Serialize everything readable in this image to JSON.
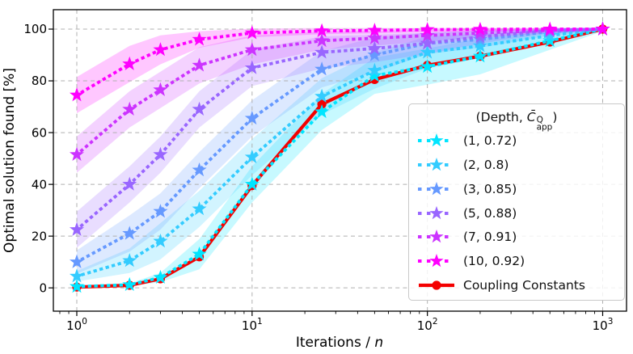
{
  "chart_data": {
    "type": "line",
    "title": "",
    "xlabel": {
      "text": "Iterations / ",
      "italic": "n"
    },
    "ylabel": "Optimal solution found [%]",
    "x_scale": "log",
    "xlim": [
      0.735,
      1368
    ],
    "ylim": [
      -9,
      107.5
    ],
    "x_major_ticks": [
      {
        "value": 1,
        "base": "10",
        "exponent": "0"
      },
      {
        "value": 10,
        "base": "10",
        "exponent": "1"
      },
      {
        "value": 100,
        "base": "10",
        "exponent": "2"
      },
      {
        "value": 1000,
        "base": "10",
        "exponent": "3"
      }
    ],
    "x_minor_ticks": [
      0.8,
      0.9,
      2,
      3,
      4,
      5,
      6,
      7,
      8,
      9,
      20,
      30,
      40,
      50,
      60,
      70,
      80,
      90,
      200,
      300,
      400,
      500,
      600,
      700,
      800,
      900
    ],
    "y_ticks": [
      0,
      20,
      40,
      60,
      80,
      100
    ],
    "grid": {
      "on": true,
      "color": "#b0b0b0",
      "style": "dashed"
    },
    "x": [
      1,
      2,
      3,
      5,
      10,
      25,
      50,
      100,
      200,
      500,
      1000
    ],
    "series": [
      {
        "name": "(1, 0.72)",
        "depth": 1,
        "c_app": 0.72,
        "style": "dotted-star",
        "color": "#00e5ff",
        "band": true,
        "values": [
          0.5,
          1.2,
          4,
          13,
          40,
          68,
          82,
          85.5,
          89.5,
          95.5,
          100
        ]
      },
      {
        "name": "(2, 0.8)",
        "depth": 2,
        "c_app": 0.8,
        "style": "dotted-star",
        "color": "#33ccff",
        "band": true,
        "values": [
          4.5,
          10.5,
          18,
          30.5,
          50.5,
          74,
          84,
          91,
          93.5,
          97.5,
          100
        ]
      },
      {
        "name": "(3, 0.85)",
        "depth": 3,
        "c_app": 0.85,
        "style": "dotted-star",
        "color": "#6699ff",
        "band": true,
        "values": [
          10,
          21,
          29.5,
          45.5,
          65.5,
          84.5,
          90,
          94.5,
          96,
          99,
          100
        ]
      },
      {
        "name": "(5, 0.88)",
        "depth": 5,
        "c_app": 0.88,
        "style": "dotted-star",
        "color": "#9966ff",
        "band": true,
        "values": [
          22.5,
          40,
          51.5,
          69,
          85,
          91,
          92.5,
          94.5,
          97,
          99.5,
          100
        ]
      },
      {
        "name": "(7, 0.91)",
        "depth": 7,
        "c_app": 0.91,
        "style": "dotted-star",
        "color": "#cc33ff",
        "band": true,
        "values": [
          51.5,
          69,
          76.5,
          86,
          92,
          95.5,
          96.5,
          97.5,
          98.5,
          99.5,
          100
        ]
      },
      {
        "name": "(10, 0.92)",
        "depth": 10,
        "c_app": 0.92,
        "style": "dotted-star",
        "color": "#ff00ff",
        "band": true,
        "values": [
          74.5,
          86.5,
          92,
          96,
          98.5,
          99.3,
          99.5,
          99.8,
          99.9,
          100,
          100
        ]
      },
      {
        "name": "Coupling Constants",
        "style": "solid-circle",
        "color": "#f40000",
        "band": false,
        "values": [
          0.3,
          1,
          3.5,
          12,
          39.5,
          71,
          80.5,
          86,
          89.5,
          95,
          100
        ]
      }
    ],
    "legend": {
      "position": "lower right",
      "title_prefix": "(Depth, ",
      "title_symbol": "C̄",
      "title_sup": "Q",
      "title_sub": "app",
      "title_suffix": ")"
    }
  }
}
